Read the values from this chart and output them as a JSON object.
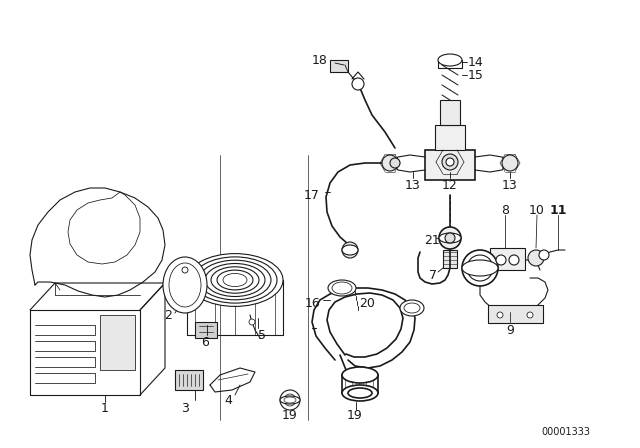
{
  "background_color": "#ffffff",
  "line_color": "#1a1a1a",
  "diagram_id": "00001333",
  "fig_width": 6.4,
  "fig_height": 4.48,
  "dpi": 100
}
